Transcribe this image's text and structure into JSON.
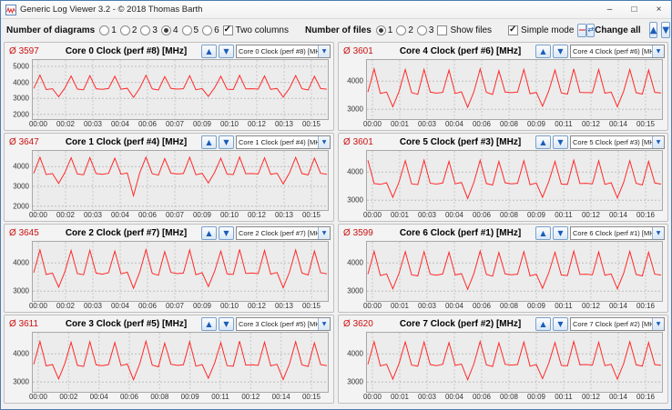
{
  "window": {
    "title": "Generic Log Viewer 3.2 - © 2018 Thomas Barth"
  },
  "symbols": {
    "avg": "Ø"
  },
  "icons": {
    "minimize": "–",
    "maximize": "□",
    "close": "×",
    "up_arrow": "▲",
    "down_arrow": "▼",
    "red_line": "—",
    "refresh": "⇄",
    "dropdown_arrow": "▼"
  },
  "colors": {
    "line": "#ff2a2a",
    "avg_red": "#cc1111",
    "arrow_blue": "#1b5cb8"
  },
  "toolbar": {
    "diagrams_label": "Number of diagrams",
    "diagram_options": [
      "1",
      "2",
      "3",
      "4",
      "5",
      "6"
    ],
    "diagrams_selected": "4",
    "two_columns_label": "Two columns",
    "two_columns_checked": true,
    "files_label": "Number of files",
    "file_options": [
      "1",
      "2",
      "3"
    ],
    "files_selected": "1",
    "show_files_label": "Show files",
    "show_files_checked": false,
    "simple_mode_label": "Simple mode",
    "simple_mode_checked": true,
    "change_all_label": "Change all"
  },
  "panels": [
    {
      "avg": "3597",
      "title": "Core 0 Clock (perf #8) [MHz]",
      "dropdown": "Core 0 Clock (perf #8) [MHz]",
      "yticks": [
        5000,
        4000,
        3000,
        2000
      ],
      "ymin": 1700,
      "ymax": 5400,
      "xticks": [
        "00:00",
        "00:02",
        "00:03",
        "00:04",
        "00:06",
        "00:07",
        "00:09",
        "00:10",
        "00:12",
        "00:13",
        "00:15"
      ],
      "values": [
        3620,
        4450,
        3550,
        3600,
        3100,
        3650,
        4400,
        3580,
        3540,
        4420,
        3600,
        3560,
        3610,
        4380,
        3570,
        3630,
        3060,
        3640,
        4440,
        3590,
        3520,
        4360,
        3620,
        3580,
        3600,
        4420,
        3540,
        3610,
        3120,
        3660,
        4380,
        3570,
        3550,
        4440,
        3590,
        3600,
        3580,
        4400,
        3560,
        3620,
        3080,
        3630,
        4420,
        3600,
        3530,
        4380,
        3610,
        3570
      ]
    },
    {
      "avg": "3601",
      "title": "Core 4 Clock (perf #6) [MHz]",
      "dropdown": "Core 4 Clock (perf #6) [MHz]",
      "yticks": [
        4000,
        3000
      ],
      "ymin": 2650,
      "ymax": 4750,
      "xticks": [
        "00:00",
        "00:01",
        "00:03",
        "00:04",
        "00:06",
        "00:08",
        "00:09",
        "00:11",
        "00:12",
        "00:14",
        "00:15"
      ],
      "values": [
        3610,
        4430,
        3560,
        3610,
        3090,
        3640,
        4410,
        3590,
        3530,
        4410,
        3610,
        3570,
        3600,
        4390,
        3560,
        3620,
        3070,
        3630,
        4430,
        3600,
        3530,
        4370,
        3610,
        3590,
        3610,
        4410,
        3550,
        3600,
        3110,
        3650,
        4390,
        3580,
        3540,
        4430,
        3600,
        3590,
        3590,
        4410,
        3570,
        3610,
        3090,
        3640,
        4410,
        3590,
        3540,
        4390,
        3600,
        3580
      ]
    },
    {
      "avg": "3647",
      "title": "Core 1 Clock (perf #4) [MHz]",
      "dropdown": "Core 1 Clock (perf #4) [MHz]",
      "yticks": [
        4000,
        3000,
        2000
      ],
      "ymin": 1800,
      "ymax": 4800,
      "xticks": [
        "00:00",
        "00:02",
        "00:03",
        "00:04",
        "00:06",
        "00:07",
        "00:09",
        "00:10",
        "00:12",
        "00:13",
        "00:15"
      ],
      "values": [
        3660,
        4470,
        3600,
        3650,
        3150,
        3700,
        4450,
        3630,
        3590,
        4460,
        3650,
        3610,
        3660,
        4430,
        3620,
        3680,
        2520,
        3690,
        4480,
        3640,
        3570,
        4410,
        3670,
        3630,
        3650,
        4470,
        3590,
        3660,
        3170,
        3710,
        4430,
        3620,
        3600,
        4490,
        3640,
        3650,
        3630,
        4450,
        3610,
        3670,
        3130,
        3680,
        4470,
        3650,
        3580,
        4430,
        3660,
        3620
      ]
    },
    {
      "avg": "3601",
      "title": "Core 5 Clock (perf #3) [MHz]",
      "dropdown": "Core 5 Clock (perf #3) [MHz]",
      "yticks": [
        4000,
        3000
      ],
      "ymin": 2650,
      "ymax": 4750,
      "xticks": [
        "00:00",
        "00:01",
        "00:03",
        "00:04",
        "00:06",
        "00:08",
        "00:09",
        "00:11",
        "00:12",
        "00:14",
        "00:16"
      ],
      "values": [
        4420,
        3590,
        3560,
        3620,
        3100,
        3650,
        4400,
        3580,
        3550,
        4420,
        3600,
        3570,
        3610,
        4380,
        3580,
        3630,
        3060,
        3640,
        4420,
        3590,
        3540,
        4380,
        3620,
        3580,
        3600,
        4400,
        3550,
        3610,
        3100,
        3660,
        4380,
        3570,
        3560,
        4420,
        3590,
        3600,
        3580,
        4400,
        3560,
        3620,
        3080,
        3630,
        4400,
        3600,
        3540,
        4380,
        3610,
        3570
      ]
    },
    {
      "avg": "3645",
      "title": "Core 2 Clock (perf #7) [MHz]",
      "dropdown": "Core 2 Clock (perf #7) [MHz]",
      "yticks": [
        4000,
        3000
      ],
      "ymin": 2650,
      "ymax": 4750,
      "xticks": [
        "00:00",
        "00:02",
        "00:03",
        "00:04",
        "00:06",
        "00:07",
        "00:09",
        "00:10",
        "00:12",
        "00:13",
        "00:15"
      ],
      "values": [
        3650,
        4460,
        3590,
        3640,
        3140,
        3690,
        4440,
        3620,
        3580,
        4450,
        3640,
        3600,
        3650,
        4420,
        3610,
        3670,
        3100,
        3680,
        4470,
        3630,
        3560,
        4400,
        3660,
        3620,
        3640,
        4460,
        3580,
        3650,
        3160,
        3700,
        4420,
        3610,
        3590,
        4480,
        3630,
        3640,
        3620,
        4440,
        3600,
        3660,
        3120,
        3670,
        4460,
        3640,
        3570,
        4420,
        3650,
        3610
      ]
    },
    {
      "avg": "3599",
      "title": "Core 6 Clock (perf #1) [MHz]",
      "dropdown": "Core 6 Clock (perf #1) [MHz]",
      "yticks": [
        4000,
        3000
      ],
      "ymin": 2650,
      "ymax": 4750,
      "xticks": [
        "00:00",
        "00:01",
        "00:03",
        "00:04",
        "00:06",
        "00:08",
        "00:09",
        "00:11",
        "00:12",
        "00:14",
        "00:16"
      ],
      "values": [
        3600,
        4410,
        3550,
        3610,
        3080,
        3640,
        4400,
        3580,
        3540,
        4400,
        3600,
        3560,
        3610,
        4380,
        3570,
        3620,
        3060,
        3630,
        4420,
        3590,
        3530,
        4370,
        3610,
        3580,
        3600,
        4400,
        3540,
        3600,
        3100,
        3650,
        4380,
        3570,
        3550,
        4420,
        3590,
        3600,
        3580,
        4390,
        3560,
        3610,
        3080,
        3630,
        4410,
        3590,
        3540,
        4380,
        3600,
        3570
      ]
    },
    {
      "avg": "3611",
      "title": "Core 3 Clock (perf #5) [MHz]",
      "dropdown": "Core 3 Clock (perf #5) [MHz]",
      "yticks": [
        4000,
        3000
      ],
      "ymin": 2650,
      "ymax": 4750,
      "xticks": [
        "00:00",
        "00:02",
        "00:04",
        "00:06",
        "00:08",
        "00:09",
        "00:11",
        "00:12",
        "00:14",
        "00:15"
      ],
      "values": [
        3630,
        4440,
        3570,
        3620,
        3110,
        3660,
        4410,
        3590,
        3550,
        4430,
        3610,
        3580,
        3620,
        4400,
        3580,
        3640,
        3080,
        3650,
        4450,
        3600,
        3540,
        4380,
        3630,
        3590,
        3610,
        4430,
        3560,
        3620,
        3130,
        3670,
        4400,
        3580,
        3560,
        4450,
        3600,
        3610,
        3590,
        4410,
        3570,
        3630,
        3090,
        3640,
        4430,
        3610,
        3550,
        4390,
        3620,
        3580
      ]
    },
    {
      "avg": "3620",
      "title": "Core 7 Clock (perf #2) [MHz]",
      "dropdown": "Core 7 Clock (perf #2) [MHz]",
      "yticks": [
        4000,
        3000
      ],
      "ymin": 2650,
      "ymax": 4750,
      "xticks": [
        "00:00",
        "00:01",
        "00:03",
        "00:04",
        "00:06",
        "00:08",
        "00:09",
        "00:11",
        "00:12",
        "00:14",
        "00:16"
      ],
      "values": [
        3630,
        4430,
        3570,
        3630,
        3100,
        3660,
        4420,
        3600,
        3560,
        4420,
        3620,
        3580,
        3630,
        4400,
        3590,
        3640,
        3080,
        3650,
        4440,
        3610,
        3550,
        4390,
        3630,
        3600,
        3620,
        4420,
        3560,
        3620,
        3120,
        3670,
        4400,
        3590,
        3570,
        4440,
        3610,
        3620,
        3600,
        4410,
        3580,
        3630,
        3100,
        3650,
        4430,
        3610,
        3560,
        4400,
        3620,
        3590
      ]
    }
  ]
}
